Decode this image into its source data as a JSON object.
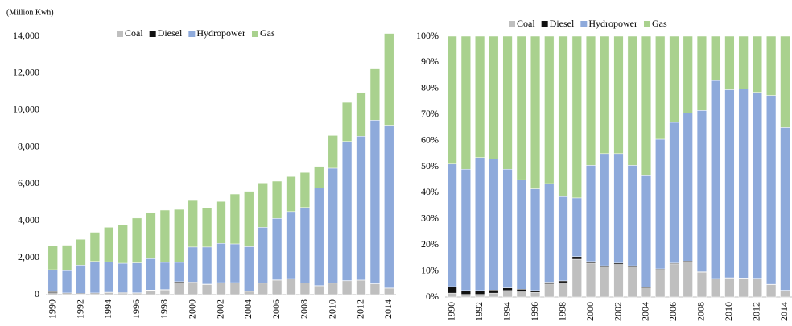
{
  "chart_data": [
    {
      "type": "stacked_bar",
      "ylabel": "(Million Kwh)",
      "categories": [
        "1990",
        null,
        "1992",
        null,
        "1994",
        null,
        "1996",
        null,
        "1998",
        null,
        "2000",
        null,
        "2002",
        null,
        "2004",
        null,
        "2006",
        null,
        "2008",
        null,
        "2010",
        null,
        "2012",
        null,
        "2014"
      ],
      "series": [
        {
          "name": "Coal",
          "color": "#bfbfbf",
          "values": [
            100,
            50,
            30,
            50,
            100,
            80,
            80,
            230,
            250,
            650,
            650,
            550,
            630,
            630,
            180,
            620,
            780,
            850,
            630,
            480,
            620,
            750,
            780,
            580,
            350
          ]
        },
        {
          "name": "Diesel",
          "color": "#111111",
          "values": [
            60,
            40,
            40,
            40,
            30,
            30,
            20,
            20,
            30,
            50,
            30,
            20,
            20,
            20,
            20,
            20,
            20,
            20,
            10,
            10,
            10,
            10,
            10,
            10,
            10
          ]
        },
        {
          "name": "Hydropower",
          "color": "#8eaadb",
          "values": [
            1190,
            1210,
            1530,
            1710,
            1650,
            1590,
            1620,
            1700,
            1470,
            1050,
            1900,
            2010,
            2130,
            2100,
            2400,
            3010,
            3330,
            3630,
            4080,
            5290,
            6220,
            7540,
            7790,
            8860,
            8820
          ]
        },
        {
          "name": "Gas",
          "color": "#a9d18e",
          "values": [
            1300,
            1380,
            1400,
            1580,
            1870,
            2080,
            2430,
            2500,
            2830,
            2870,
            2520,
            2120,
            2270,
            2700,
            3000,
            2400,
            2020,
            1900,
            1900,
            1170,
            1770,
            2120,
            2370,
            2780,
            4970
          ]
        }
      ],
      "ylim": [
        0,
        14000
      ],
      "yticks": [
        0,
        {
          "value": 2000,
          "label": "2,000"
        },
        {
          "value": 4000,
          "label": "4,000"
        },
        {
          "value": 6000,
          "label": "6,000"
        },
        {
          "value": 8000,
          "label": "8,000"
        },
        {
          "value": 10000,
          "label": "10,000"
        },
        {
          "value": 12000,
          "label": "12,000"
        },
        {
          "value": 14000,
          "label": "14,000"
        }
      ],
      "grid": false,
      "legend": "top"
    },
    {
      "type": "stacked_bar",
      "categories": [
        "1990",
        null,
        "1992",
        null,
        "1994",
        null,
        "1996",
        null,
        "1998",
        null,
        "2000",
        null,
        "2002",
        null,
        "2004",
        null,
        "2006",
        null,
        "2008",
        null,
        "2010",
        null,
        "2012",
        null,
        "2014"
      ],
      "series": [
        {
          "name": "Coal",
          "color": "#bfbfbf",
          "values": [
            1.5,
            1,
            1,
            1.5,
            2.5,
            2,
            1.8,
            5,
            5.5,
            14.5,
            13,
            11.5,
            12.5,
            11.5,
            3.5,
            10.5,
            12.7,
            13.5,
            9.5,
            7,
            7.3,
            7.2,
            7.1,
            4.8,
            2.5
          ]
        },
        {
          "name": "Diesel",
          "color": "#111111",
          "values": [
            2.5,
            1.5,
            1.5,
            1.2,
            1,
            1,
            0.7,
            0.7,
            0.7,
            1,
            0.6,
            0.5,
            0.5,
            0.5,
            0.4,
            0.3,
            0.3,
            0.3,
            0.2,
            0.1,
            0.1,
            0.1,
            0.1,
            0.1,
            0.1
          ]
        },
        {
          "name": "Hydropower",
          "color": "#8eaadb",
          "values": [
            47,
            46.5,
            51,
            50.3,
            45.5,
            42,
            39,
            37.8,
            32.3,
            22.5,
            36.9,
            43,
            42,
            38.5,
            42.6,
            49.7,
            54,
            56.7,
            61.8,
            75.9,
            72.1,
            72.5,
            71.3,
            72.4,
            62.4
          ]
        },
        {
          "name": "Gas",
          "color": "#a9d18e",
          "values": [
            49,
            51,
            46.5,
            47,
            51,
            55,
            58.5,
            56.5,
            61.5,
            62,
            49.5,
            45,
            45,
            49.5,
            53.5,
            39.5,
            33,
            29.5,
            28.5,
            17,
            20.5,
            20.2,
            21.5,
            22.7,
            35
          ]
        }
      ],
      "ylim": [
        0,
        100
      ],
      "yticks": [
        {
          "value": 0,
          "label": "0%"
        },
        {
          "value": 10,
          "label": "10%"
        },
        {
          "value": 20,
          "label": "20%"
        },
        {
          "value": 30,
          "label": "30%"
        },
        {
          "value": 40,
          "label": "40%"
        },
        {
          "value": 50,
          "label": "50%"
        },
        {
          "value": 60,
          "label": "60%"
        },
        {
          "value": 70,
          "label": "70%"
        },
        {
          "value": 80,
          "label": "80%"
        },
        {
          "value": 90,
          "label": "90%"
        },
        {
          "value": 100,
          "label": "100%"
        }
      ],
      "grid": false,
      "legend": "top"
    }
  ]
}
